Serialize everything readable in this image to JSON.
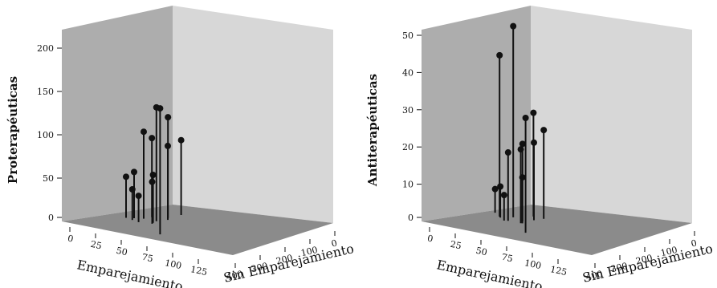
{
  "chart_data": [
    {
      "type": "scatter3d",
      "xlabel": "Emparejamiento",
      "zlabel": "Sin Emparejamiento",
      "ylabel": "Proterapéuticas",
      "x_ticks": [
        "0",
        "25",
        "50",
        "75",
        "100",
        "125"
      ],
      "z_ticks": [
        "400",
        "300",
        "200",
        "100",
        "0"
      ],
      "y_ticks": [
        "0",
        "50",
        "100",
        "150",
        "200"
      ],
      "ylim": [
        0,
        200
      ],
      "grid": false,
      "points": [
        {
          "x": 70,
          "z": 300,
          "y": 52
        },
        {
          "x": 80,
          "z": 300,
          "y": 58
        },
        {
          "x": 80,
          "z": 310,
          "y": 40
        },
        {
          "x": 90,
          "z": 320,
          "y": 35
        },
        {
          "x": 92,
          "z": 300,
          "y": 105
        },
        {
          "x": 100,
          "z": 290,
          "y": 96
        },
        {
          "x": 108,
          "z": 320,
          "y": 60
        },
        {
          "x": 108,
          "z": 325,
          "y": 53
        },
        {
          "x": 110,
          "z": 310,
          "y": 136
        },
        {
          "x": 120,
          "z": 290,
          "y": 121
        },
        {
          "x": 122,
          "z": 300,
          "y": 90
        },
        {
          "x": 132,
          "z": 270,
          "y": 91
        },
        {
          "x": 130,
          "z": 380,
          "y": 150
        }
      ]
    },
    {
      "type": "scatter3d",
      "xlabel": "Emparejamiento",
      "zlabel": "Sin Emparejamiento",
      "ylabel": "Antiterapéuticas",
      "x_ticks": [
        "0",
        "25",
        "50",
        "75",
        "100",
        "125"
      ],
      "z_ticks": [
        "400",
        "300",
        "200",
        "100",
        "0"
      ],
      "y_ticks": [
        "0",
        "10",
        "20",
        "30",
        "40",
        "50"
      ],
      "ylim": [
        0,
        52
      ],
      "grid": false,
      "points": [
        {
          "x": 75,
          "z": 270,
          "y": 7
        },
        {
          "x": 85,
          "z": 290,
          "y": 44
        },
        {
          "x": 87,
          "z": 295,
          "y": 9
        },
        {
          "x": 95,
          "z": 310,
          "y": 7.5
        },
        {
          "x": 100,
          "z": 310,
          "y": 19
        },
        {
          "x": 102,
          "z": 290,
          "y": 52
        },
        {
          "x": 118,
          "z": 320,
          "y": 20.5
        },
        {
          "x": 118,
          "z": 310,
          "y": 21.5
        },
        {
          "x": 120,
          "z": 320,
          "y": 13
        },
        {
          "x": 125,
          "z": 280,
          "y": 28.5
        },
        {
          "x": 130,
          "z": 300,
          "y": 21.5
        },
        {
          "x": 140,
          "z": 290,
          "y": 24.5
        },
        {
          "x": 135,
          "z": 370,
          "y": 31.5
        }
      ]
    }
  ]
}
